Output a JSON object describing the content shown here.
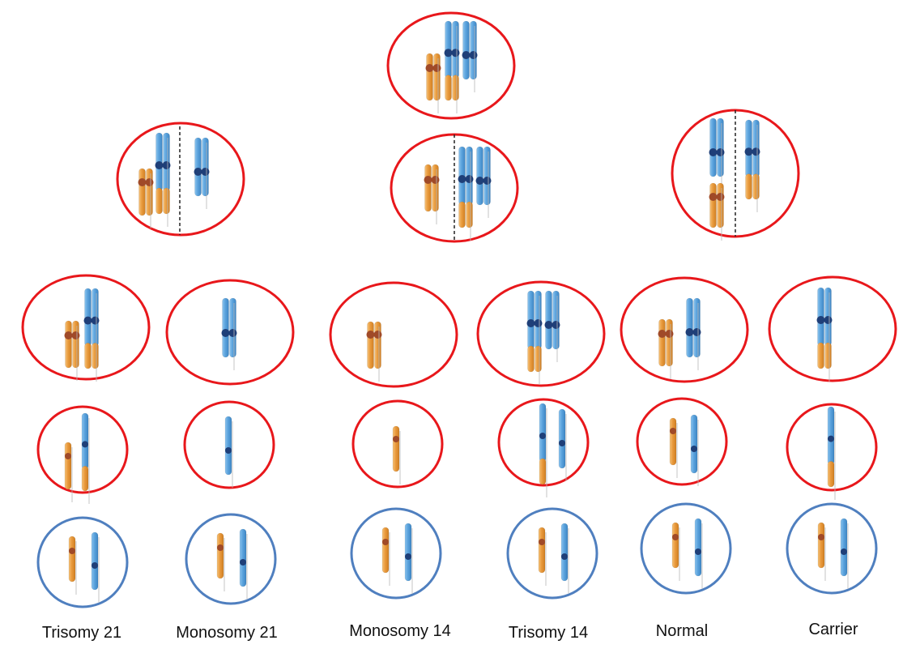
{
  "colors": {
    "cell_outline_meiosis": "#e8171b",
    "cell_outline_zygote": "#4f7fbf",
    "chromosome_14": "#5ba3dd",
    "chromosome_21": "#e99a3c",
    "centromere_14": "#1f3f78",
    "centromere_21": "#a04a28",
    "division_line": "#222222"
  },
  "legend_icons": {
    "blue_chromosome": "chromosome-14-icon",
    "orange_chromosome": "chromosome-21-icon"
  },
  "outcomes": [
    {
      "id": "trisomy-21",
      "label": "Trisomy 21"
    },
    {
      "id": "monosomy-21",
      "label": "Monosomy 21"
    },
    {
      "id": "monosomy-14",
      "label": "Monosomy 14"
    },
    {
      "id": "trisomy-14",
      "label": "Trisomy 14"
    },
    {
      "id": "normal",
      "label": "Normal"
    },
    {
      "id": "carrier",
      "label": "Carrier"
    }
  ]
}
